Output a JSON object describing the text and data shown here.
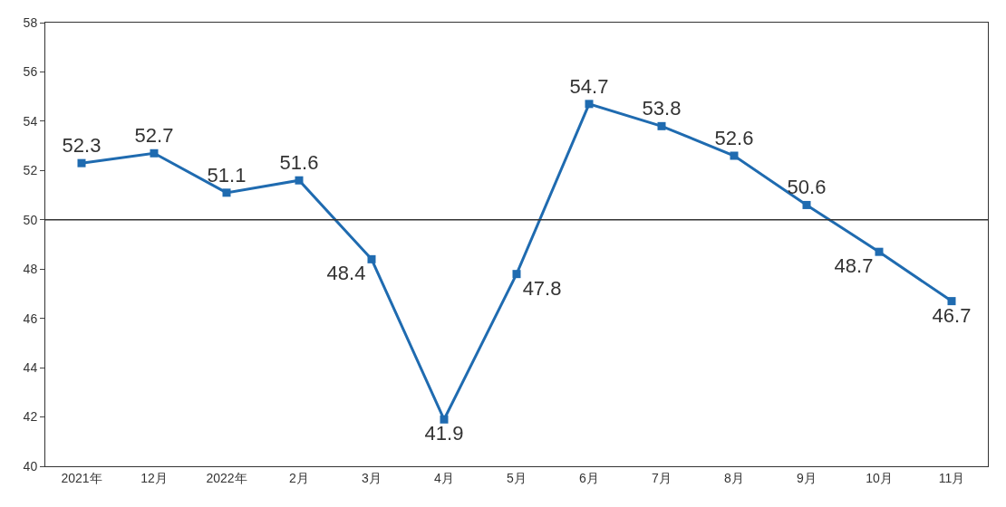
{
  "chart_data": {
    "type": "line",
    "categories": [
      "2021年",
      "12月",
      "2022年",
      "2月",
      "3月",
      "4月",
      "5月",
      "6月",
      "7月",
      "8月",
      "9月",
      "10月",
      "11月"
    ],
    "series": [
      {
        "color": "#1f6bb0",
        "values": [
          52.3,
          52.7,
          51.1,
          51.6,
          48.4,
          41.9,
          47.8,
          54.7,
          53.8,
          52.6,
          50.6,
          48.7,
          46.7
        ]
      }
    ],
    "ylim": [
      40,
      58
    ],
    "yticks": [
      40,
      42,
      44,
      46,
      48,
      50,
      52,
      54,
      56,
      58
    ],
    "marker": "square",
    "data_labels": true,
    "legend": false,
    "ref_lines": [
      {
        "axis": "y",
        "value": 50,
        "color": "#333333"
      }
    ]
  }
}
